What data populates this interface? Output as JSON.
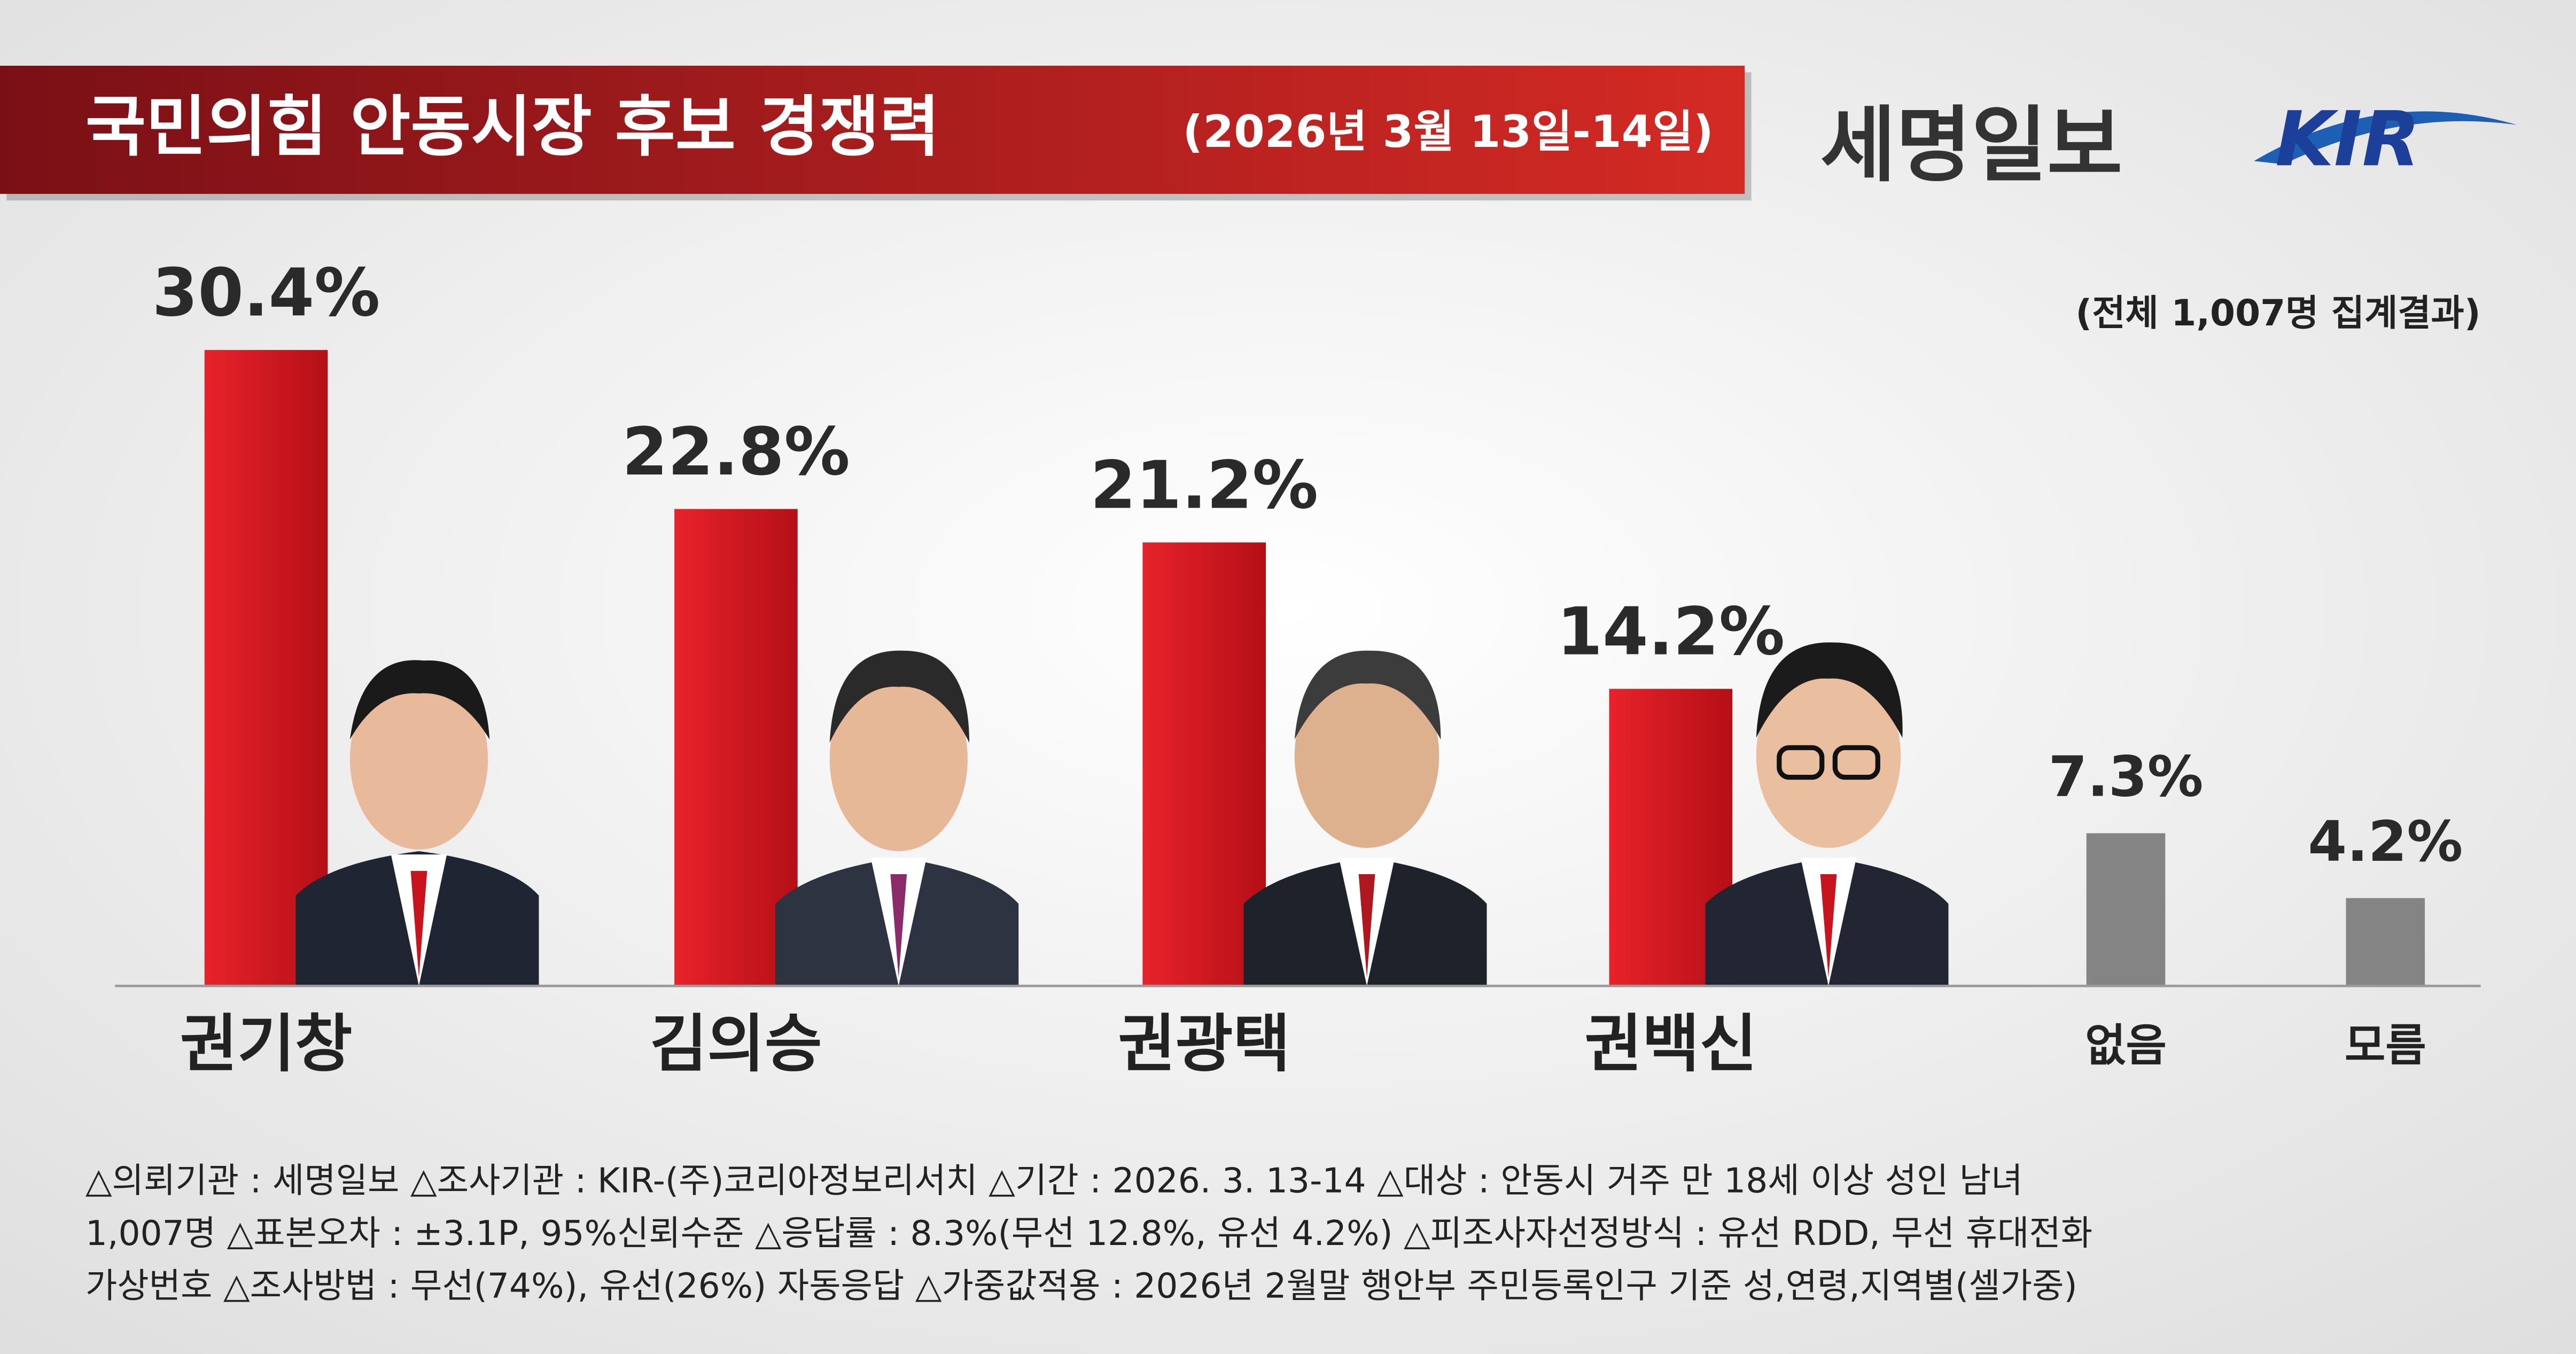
{
  "chart_data": {
    "type": "bar",
    "title": "국민의힘 안동시장 후보 경쟁력",
    "subtitle": "(2026년 3월 13일-14일)",
    "publisher": "세명일보",
    "logo": "KIR",
    "note": "(전체 1,007명 집계결과)",
    "categories": [
      "권기창",
      "김의승",
      "권광택",
      "권백신",
      "없음",
      "모름"
    ],
    "values": [
      30.4,
      22.8,
      21.2,
      14.2,
      7.3,
      4.2
    ],
    "value_labels": [
      "30.4%",
      "22.8%",
      "21.2%",
      "14.2%",
      "7.3%",
      "4.2%"
    ],
    "colors": [
      "#d4161d",
      "#d4161d",
      "#d4161d",
      "#d4161d",
      "#848484",
      "#848484"
    ],
    "footnote": [
      "△의뢰기관 : 세명일보   △조사기관 : KIR-(주)코리아정보리서치   △기간 : 2026. 3. 13-14   △대상 : 안동시 거주 만 18세  이상 성인 남녀",
      "1,007명   △표본오차 : ±3.1P, 95%신뢰수준   △응답률 : 8.3%(무선 12.8%, 유선 4.2%)   △피조사자선정방식 : 유선 RDD, 무선 휴대전화",
      "가상번호  △조사방법 : 무선(74%), 유선(26%) 자동응답   △가중값적용 : 2026년 2월말 행안부 주민등록인구 기준 성,연령,지역별(셀가중)"
    ]
  }
}
